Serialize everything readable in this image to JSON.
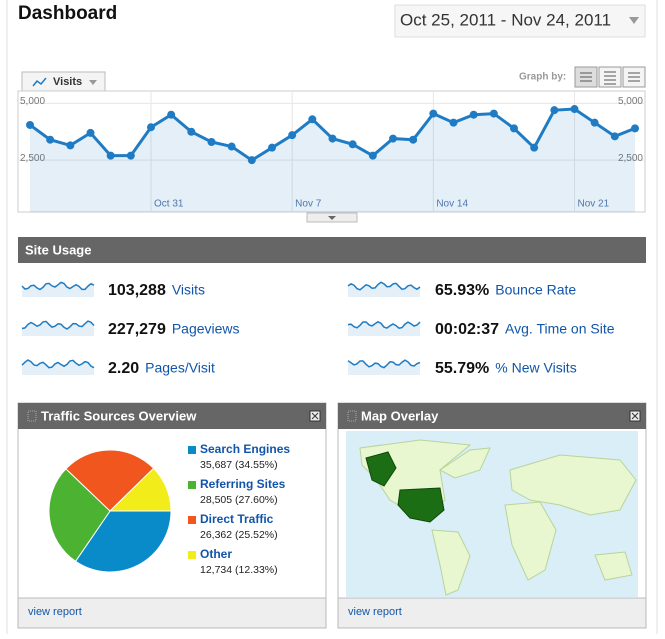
{
  "header": {
    "title": "Dashboard",
    "date_range": "Oct 25, 2011 - Nov 24, 2011"
  },
  "graph_by": "Graph by:",
  "chart_data": [
    {
      "type": "line",
      "categories": [
        null,
        null,
        null,
        null,
        null,
        null,
        "Oct 31",
        null,
        null,
        null,
        null,
        null,
        null,
        "Nov 7",
        null,
        null,
        null,
        null,
        null,
        null,
        "Nov 14",
        null,
        null,
        null,
        null,
        null,
        null,
        "Nov 21",
        null,
        null,
        null
      ],
      "series": [
        {
          "name": "Visits",
          "color": "#1f7cc4",
          "values": [
            4050,
            3400,
            3150,
            3700,
            2700,
            2700,
            3950,
            4500,
            3750,
            3300,
            3100,
            2500,
            3050,
            3600,
            4300,
            3450,
            3200,
            2700,
            3450,
            3400,
            4550,
            4150,
            4500,
            4550,
            3900,
            3050,
            4700,
            4750,
            4150,
            3550,
            3900
          ]
        }
      ],
      "ylim": [
        0,
        5500
      ],
      "yticks": [
        {
          "value": 2500,
          "label": "2,500"
        },
        {
          "value": 5000,
          "label": "5,000"
        }
      ],
      "grid": true
    },
    {
      "type": "pie",
      "title": "Traffic Sources Overview",
      "categories": [
        "Search Engines",
        "Referring Sites",
        "Direct Traffic",
        "Other"
      ],
      "values": [
        35687,
        28505,
        26362,
        12734
      ],
      "value_labels": [
        "35,687 (34.55%)",
        "28,505 (27.60%)",
        "26,362 (25.52%)",
        "12,734 (12.33%)"
      ],
      "colors": [
        "#0a8bc9",
        "#4cb232",
        "#f0561d",
        "#f2ec1a"
      ]
    }
  ],
  "site_usage": {
    "title": "Site Usage",
    "metrics": [
      {
        "value": "103,288",
        "label": "Visits"
      },
      {
        "value": "227,279",
        "label": "Pageviews"
      },
      {
        "value": "2.20",
        "label": "Pages/Visit"
      },
      {
        "value": "65.93%",
        "label": "Bounce Rate"
      },
      {
        "value": "00:02:37",
        "label": "Avg. Time on Site"
      },
      {
        "value": "55.79%",
        "label": "% New Visits"
      }
    ]
  },
  "traffic_sources": {
    "view_report": "view report"
  },
  "map_overlay": {
    "title": "Map Overlay",
    "view_report": "view report"
  }
}
